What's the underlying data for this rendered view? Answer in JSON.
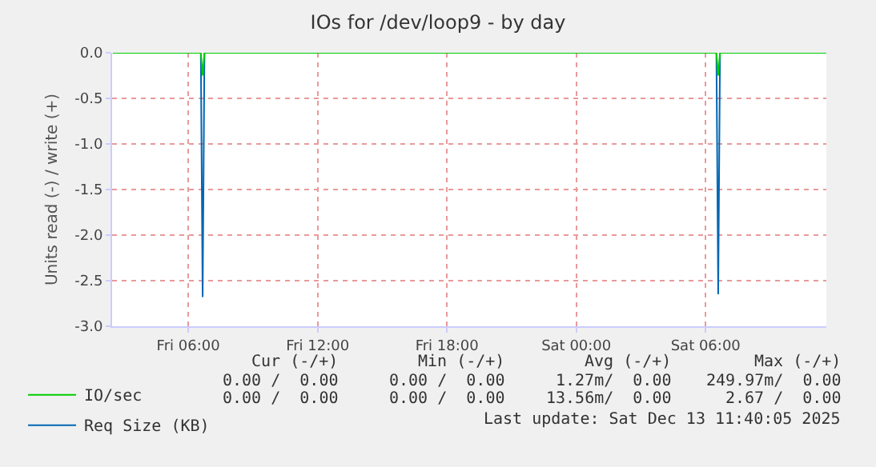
{
  "chart_data": {
    "type": "line",
    "title": "IOs for /dev/loop9 - by day",
    "ylabel": "Units read (-) / write (+)",
    "x": [
      "2025-12-12T02:30",
      "2025-12-12T06:35",
      "2025-12-12T06:40",
      "2025-12-12T06:45",
      "2025-12-13T06:30",
      "2025-12-13T06:35",
      "2025-12-13T06:40",
      "2025-12-13T11:35"
    ],
    "series": [
      {
        "name": "IO/sec",
        "color": "#00cc00",
        "values": [
          0,
          0,
          -0.25,
          0,
          0,
          -0.25,
          0,
          0
        ]
      },
      {
        "name": "Req Size (KB)",
        "color": "#0066b3",
        "values": [
          0,
          0,
          -2.68,
          0,
          0,
          -2.65,
          0,
          0
        ]
      }
    ],
    "xlim": [
      "2025-12-12T02:28",
      "2025-12-13T11:36"
    ],
    "xticks": [
      {
        "value": "2025-12-12T06:00",
        "label": "Fri 06:00"
      },
      {
        "value": "2025-12-12T12:00",
        "label": "Fri 12:00"
      },
      {
        "value": "2025-12-12T18:00",
        "label": "Fri 18:00"
      },
      {
        "value": "2025-12-13T00:00",
        "label": "Sat 00:00"
      },
      {
        "value": "2025-12-13T06:00",
        "label": "Sat 06:00"
      }
    ],
    "ylim": [
      -3,
      0
    ],
    "yticks": [
      {
        "value": -3,
        "label": "-3.0"
      },
      {
        "value": -2.5,
        "label": "-2.5"
      },
      {
        "value": -2,
        "label": "-2.0"
      },
      {
        "value": -1.5,
        "label": "-1.5"
      },
      {
        "value": -1,
        "label": "-1.0"
      },
      {
        "value": -0.5,
        "label": "-0.5"
      },
      {
        "value": 0,
        "label": "0.0"
      }
    ],
    "grid": true,
    "legend": "bottom left",
    "marker": "none",
    "line_style": "solid",
    "annotations": [
      "Cur (-/+)",
      "Min (-/+)",
      "Avg (-/+)",
      "Max (-/+)",
      "0.00 /  0.00",
      "0.00 /  0.00",
      "1.27m/  0.00",
      "249.97m/  0.00",
      "0.00 /  0.00",
      "0.00 /  0.00",
      "13.56m/  0.00",
      "2.67 /  0.00",
      "Last update: Sat Dec 13 11:40:05 2025"
    ]
  }
}
